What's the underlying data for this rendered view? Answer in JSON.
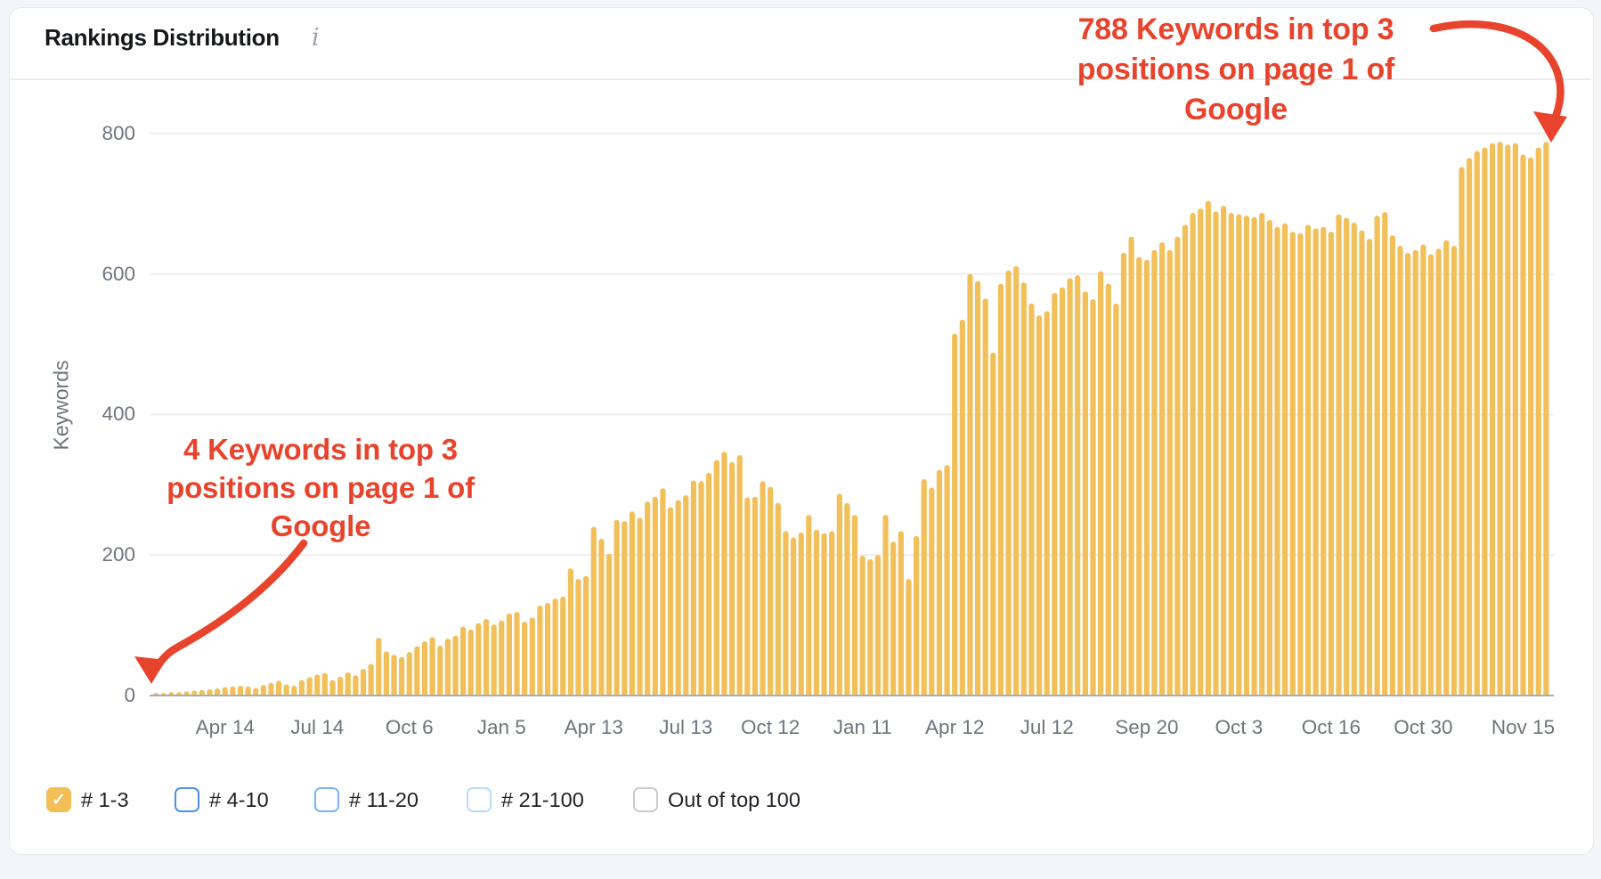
{
  "card": {
    "title": "Rankings Distribution",
    "info_icon": "i"
  },
  "annotations": {
    "start": {
      "text": "4 Keywords in top 3\npositions on page 1 of\nGoogle"
    },
    "end": {
      "text": "788 Keywords in top 3\npositions on page 1 of\nGoogle"
    }
  },
  "colors": {
    "annotation_red": "#E8432C",
    "bar_yellow": "#F2C05A",
    "gridline": "#EDEEF0",
    "axis_line": "#A8ADB5",
    "checkbox_checked_fill": "#F3BE55",
    "checkbox_border_blue": "#4A90F4",
    "checkbox_border_light_blue": "#7AB3F7",
    "checkbox_border_pale_blue": "#BBDAFB",
    "checkbox_border_gray": "#C8CCD2"
  },
  "legend": [
    {
      "label": "# 1-3",
      "checked": true,
      "fill": "#F3BE55",
      "border": "#F3BE55"
    },
    {
      "label": "# 4-10",
      "checked": false,
      "fill": "#FFFFFF",
      "border": "#4A90F4"
    },
    {
      "label": "# 11-20",
      "checked": false,
      "fill": "#FFFFFF",
      "border": "#7AB3F7"
    },
    {
      "label": "# 21-100",
      "checked": false,
      "fill": "#FFFFFF",
      "border": "#BBDAFB"
    },
    {
      "label": "Out of top 100",
      "checked": false,
      "fill": "#FFFFFF",
      "border": "#C8CCD2"
    }
  ],
  "chart_data": {
    "type": "bar",
    "title": "Rankings Distribution",
    "xlabel": "",
    "ylabel": "Keywords",
    "ylim": [
      0,
      800
    ],
    "yticks": [
      0,
      200,
      400,
      600,
      800
    ],
    "grid": true,
    "legend_position": "bottom",
    "series_name": "# 1-3",
    "bar_color": "#F2C05A",
    "first_value_callout": 4,
    "last_value_callout": 788,
    "x_labels": [
      {
        "label": "Apr 14",
        "index": 9
      },
      {
        "label": "Jul 14",
        "index": 21
      },
      {
        "label": "Oct 6",
        "index": 33
      },
      {
        "label": "Jan 5",
        "index": 45
      },
      {
        "label": "Apr 13",
        "index": 57
      },
      {
        "label": "Jul 13",
        "index": 69
      },
      {
        "label": "Oct 12",
        "index": 80
      },
      {
        "label": "Jan 11",
        "index": 92
      },
      {
        "label": "Apr 12",
        "index": 104
      },
      {
        "label": "Jul 12",
        "index": 116
      },
      {
        "label": "Sep 20",
        "index": 129
      },
      {
        "label": "Oct 3",
        "index": 141
      },
      {
        "label": "Oct 16",
        "index": 153
      },
      {
        "label": "Oct 30",
        "index": 165
      },
      {
        "label": "Nov 15",
        "index": 178
      }
    ],
    "values": [
      4,
      4,
      5,
      5,
      6,
      7,
      8,
      9,
      10,
      12,
      13,
      14,
      13,
      11,
      15,
      18,
      21,
      16,
      14,
      22,
      26,
      30,
      32,
      22,
      27,
      33,
      29,
      38,
      45,
      82,
      63,
      58,
      55,
      62,
      70,
      77,
      83,
      71,
      81,
      85,
      98,
      94,
      103,
      109,
      101,
      107,
      117,
      119,
      105,
      111,
      128,
      132,
      138,
      141,
      181,
      166,
      170,
      240,
      223,
      202,
      250,
      248,
      262,
      253,
      276,
      283,
      295,
      268,
      278,
      285,
      306,
      305,
      317,
      335,
      347,
      332,
      342,
      282,
      283,
      305,
      297,
      274,
      234,
      225,
      232,
      257,
      236,
      231,
      234,
      287,
      274,
      257,
      199,
      194,
      200,
      257,
      219,
      234,
      166,
      227,
      308,
      296,
      321,
      328,
      515,
      535,
      600,
      590,
      565,
      488,
      586,
      605,
      611,
      588,
      558,
      541,
      547,
      573,
      581,
      594,
      598,
      575,
      564,
      604,
      586,
      558,
      630,
      653,
      624,
      620,
      634,
      645,
      634,
      653,
      670,
      687,
      693,
      704,
      689,
      697,
      687,
      685,
      683,
      681,
      687,
      677,
      667,
      672,
      660,
      658,
      670,
      665,
      667,
      660,
      685,
      680,
      673,
      662,
      650,
      683,
      688,
      655,
      640,
      630,
      634,
      642,
      628,
      636,
      648,
      640,
      752,
      765,
      775,
      780,
      786,
      788,
      784,
      786,
      770,
      766,
      780,
      788
    ]
  }
}
